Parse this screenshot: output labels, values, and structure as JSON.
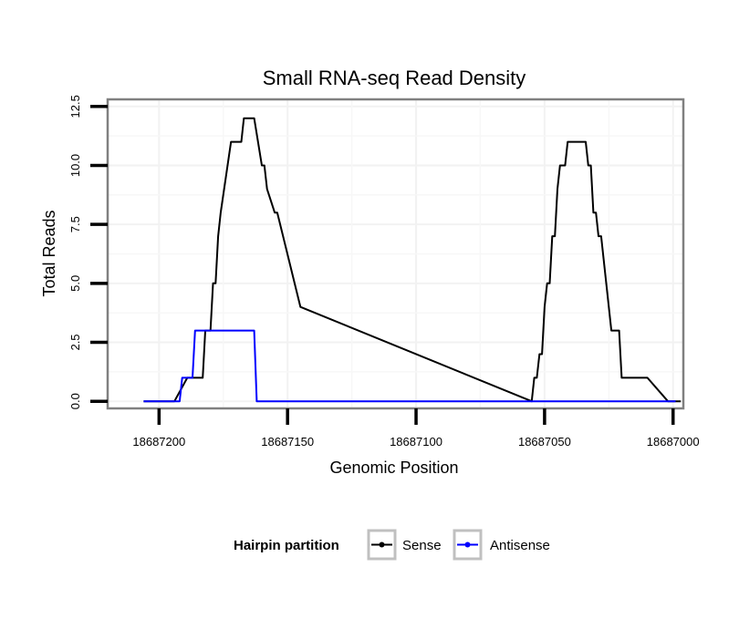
{
  "chart_data": {
    "type": "line",
    "title": "Small RNA-seq Read Density",
    "xlabel": "Genomic Position",
    "ylabel": "Total Reads",
    "xlim": [
      18687220,
      18686996
    ],
    "ylim": [
      -0.3,
      12.8
    ],
    "x_reversed": true,
    "x_ticks": [
      18687200,
      18687150,
      18687100,
      18687050,
      18687000
    ],
    "x_tick_labels": [
      "18687200",
      "18687150",
      "18687100",
      "18687050",
      "18687000"
    ],
    "y_ticks": [
      0,
      2.5,
      5,
      7.5,
      10,
      12.5
    ],
    "y_tick_labels": [
      "0.0",
      "2.5",
      "5.0",
      "7.5",
      "10.0",
      "12.5"
    ],
    "grid": true,
    "legend": {
      "title": "Hairpin partition",
      "position": "bottom",
      "entries": [
        "Sense",
        "Antisense"
      ]
    },
    "series": [
      {
        "name": "Sense",
        "color": "#000000",
        "x": [
          18687206,
          18687195,
          18687194,
          18687189,
          18687188,
          18687187,
          18687183,
          18687182,
          18687181,
          18687180,
          18687179,
          18687178,
          18687177,
          18687176,
          18687172,
          18687171,
          18687170,
          18687169,
          18687168,
          18687167,
          18687165,
          18687164,
          18687163,
          18687160,
          18687159,
          18687158,
          18687155,
          18687154,
          18687145,
          18687055,
          18687054,
          18687053,
          18687052,
          18687051,
          18687050,
          18687049,
          18687048,
          18687047,
          18687046,
          18687045,
          18687044,
          18687043,
          18687042,
          18687041,
          18687040,
          18687039,
          18687038,
          18687037,
          18687036,
          18687035,
          18687034,
          18687033,
          18687032,
          18687031,
          18687030,
          18687029,
          18687028,
          18687027,
          18687026,
          18687025,
          18687024,
          18687023,
          18687022,
          18687021,
          18687020,
          18687019,
          18687018,
          18687017,
          18687016,
          18687015,
          18687014,
          18687013,
          18687012,
          18687011,
          18687010,
          18687002,
          18687001,
          18687000,
          18686997
        ],
        "y": [
          0,
          0,
          0,
          1,
          1,
          1,
          1,
          3,
          3,
          3,
          5,
          5,
          7,
          8,
          11,
          11,
          11,
          11,
          11,
          12,
          12,
          12,
          12,
          10,
          10,
          9,
          8,
          8,
          4,
          0,
          1,
          1,
          2,
          2,
          4,
          5,
          5,
          7,
          7,
          9,
          10,
          10,
          10,
          11,
          11,
          11,
          11,
          11,
          11,
          11,
          11,
          10,
          10,
          8,
          8,
          7,
          7,
          6,
          5,
          4,
          3,
          3,
          3,
          3,
          1,
          1,
          1,
          1,
          1,
          1,
          1,
          1,
          1,
          1,
          1,
          0,
          0,
          0,
          0
        ]
      },
      {
        "name": "Antisense",
        "color": "#0000ff",
        "x": [
          18687206,
          18687192,
          18687191,
          18687189,
          18687188,
          18687187,
          18687186,
          18687173,
          18687172,
          18687163,
          18687162,
          18687161,
          18686999
        ],
        "y": [
          0,
          0,
          1,
          1,
          1,
          1,
          3,
          3,
          3,
          3,
          0,
          0,
          0
        ]
      }
    ]
  }
}
